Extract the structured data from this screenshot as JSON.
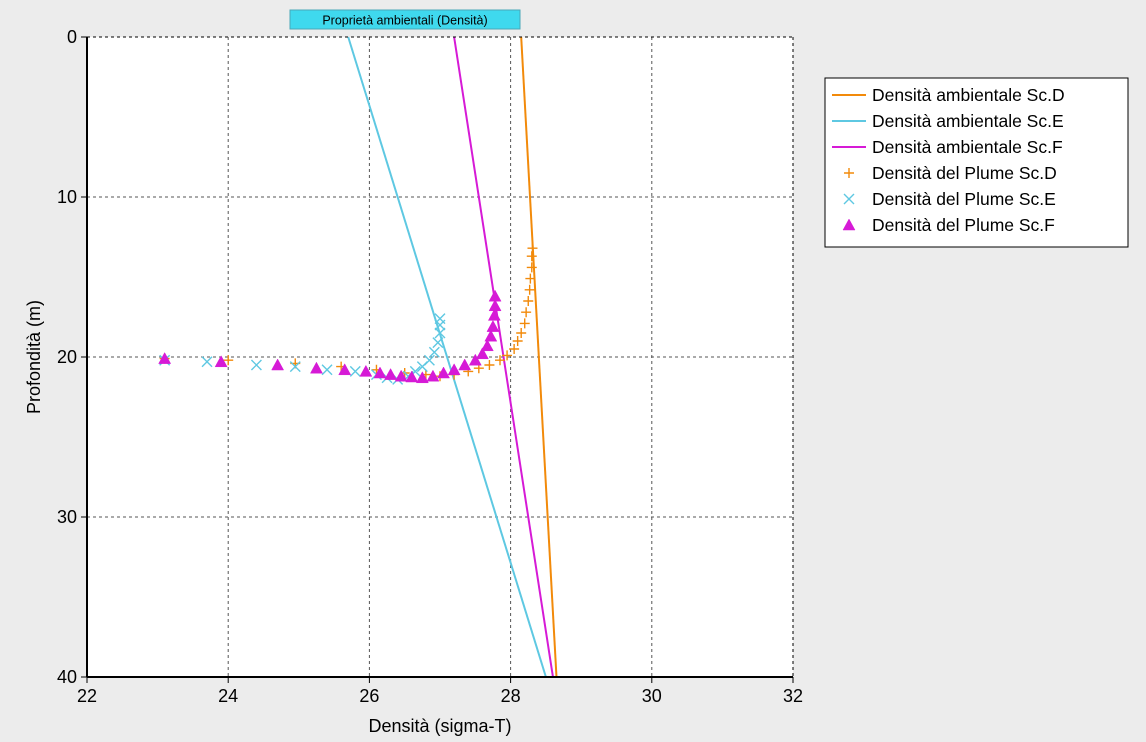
{
  "colors": {
    "background": "#ececec",
    "plot_area": "#ffffff",
    "sc_d": "#f28a0a",
    "sc_e": "#5ec8e2",
    "sc_f": "#d61ad6",
    "title_bg": "#3fd9ee",
    "grid": "#555555"
  },
  "chart_data": {
    "type": "line",
    "title": "Proprietà ambientali (Densità)",
    "xlabel": "Densità (sigma-T)",
    "ylabel": "Profondità (m)",
    "xlim": [
      22,
      32
    ],
    "ylim": [
      0,
      40
    ],
    "y_inverted": true,
    "x_ticks": [
      "22",
      "24",
      "26",
      "28",
      "30",
      "32"
    ],
    "y_ticks": [
      "0",
      "10",
      "20",
      "30",
      "40"
    ],
    "grid": true,
    "legend_position": "right",
    "series": [
      {
        "name": "Densità ambientale Sc.D",
        "kind": "line",
        "color": "#f28a0a",
        "points": [
          [
            28.15,
            0
          ],
          [
            28.65,
            40
          ]
        ]
      },
      {
        "name": "Densità ambientale Sc.E",
        "kind": "line",
        "color": "#5ec8e2",
        "points": [
          [
            25.7,
            0
          ],
          [
            28.5,
            40
          ]
        ]
      },
      {
        "name": "Densità ambientale Sc.F",
        "kind": "line",
        "color": "#d61ad6",
        "points": [
          [
            27.2,
            0
          ],
          [
            28.6,
            40
          ]
        ]
      },
      {
        "name": "Densità del Plume Sc.D",
        "kind": "marker",
        "marker": "plus",
        "color": "#f28a0a",
        "points": [
          [
            23.1,
            20.1
          ],
          [
            24.0,
            20.2
          ],
          [
            24.95,
            20.4
          ],
          [
            25.6,
            20.6
          ],
          [
            26.1,
            20.8
          ],
          [
            26.5,
            21.0
          ],
          [
            26.8,
            21.1
          ],
          [
            27.0,
            21.2
          ],
          [
            27.2,
            21.1
          ],
          [
            27.4,
            20.9
          ],
          [
            27.55,
            20.7
          ],
          [
            27.7,
            20.5
          ],
          [
            27.85,
            20.2
          ],
          [
            27.95,
            19.9
          ],
          [
            28.05,
            19.5
          ],
          [
            28.1,
            19.0
          ],
          [
            28.15,
            18.5
          ],
          [
            28.2,
            17.9
          ],
          [
            28.22,
            17.2
          ],
          [
            28.25,
            16.5
          ],
          [
            28.27,
            15.8
          ],
          [
            28.28,
            15.1
          ],
          [
            28.3,
            14.4
          ],
          [
            28.3,
            13.7
          ],
          [
            28.31,
            13.2
          ]
        ]
      },
      {
        "name": "Densità del Plume Sc.E",
        "kind": "marker",
        "marker": "x",
        "color": "#5ec8e2",
        "points": [
          [
            23.1,
            20.2
          ],
          [
            23.7,
            20.3
          ],
          [
            24.4,
            20.5
          ],
          [
            24.95,
            20.6
          ],
          [
            25.4,
            20.8
          ],
          [
            25.8,
            20.9
          ],
          [
            26.1,
            21.1
          ],
          [
            26.25,
            21.3
          ],
          [
            26.4,
            21.4
          ],
          [
            26.55,
            21.2
          ],
          [
            26.65,
            20.9
          ],
          [
            26.75,
            20.6
          ],
          [
            26.85,
            20.2
          ],
          [
            26.92,
            19.7
          ],
          [
            26.97,
            19.1
          ],
          [
            27.0,
            18.5
          ],
          [
            27.0,
            18.0
          ],
          [
            27.0,
            17.6
          ]
        ]
      },
      {
        "name": "Densità del Plume Sc.F",
        "kind": "marker",
        "marker": "triangle",
        "color": "#d61ad6",
        "points": [
          [
            23.1,
            20.1
          ],
          [
            23.9,
            20.3
          ],
          [
            24.7,
            20.5
          ],
          [
            25.25,
            20.7
          ],
          [
            25.65,
            20.8
          ],
          [
            25.95,
            20.9
          ],
          [
            26.15,
            21.0
          ],
          [
            26.3,
            21.1
          ],
          [
            26.45,
            21.2
          ],
          [
            26.6,
            21.25
          ],
          [
            26.75,
            21.3
          ],
          [
            26.9,
            21.2
          ],
          [
            27.05,
            21.0
          ],
          [
            27.2,
            20.8
          ],
          [
            27.35,
            20.5
          ],
          [
            27.5,
            20.2
          ],
          [
            27.6,
            19.8
          ],
          [
            27.67,
            19.3
          ],
          [
            27.72,
            18.7
          ],
          [
            27.75,
            18.1
          ],
          [
            27.77,
            17.4
          ],
          [
            27.78,
            16.8
          ],
          [
            27.78,
            16.2
          ]
        ]
      }
    ]
  }
}
